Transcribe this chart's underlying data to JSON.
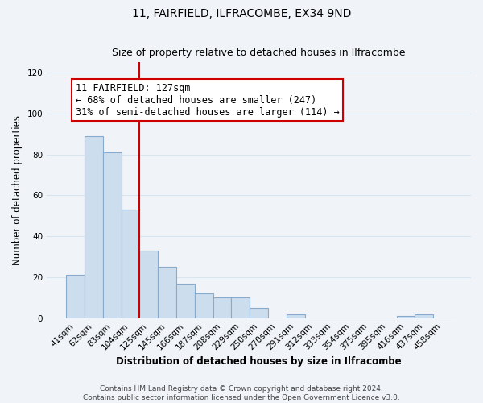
{
  "title": "11, FAIRFIELD, ILFRACOMBE, EX34 9ND",
  "subtitle": "Size of property relative to detached houses in Ilfracombe",
  "xlabel": "Distribution of detached houses by size in Ilfracombe",
  "ylabel": "Number of detached properties",
  "footer_line1": "Contains HM Land Registry data © Crown copyright and database right 2024.",
  "footer_line2": "Contains public sector information licensed under the Open Government Licence v3.0.",
  "bin_labels": [
    "41sqm",
    "62sqm",
    "83sqm",
    "104sqm",
    "125sqm",
    "145sqm",
    "166sqm",
    "187sqm",
    "208sqm",
    "229sqm",
    "250sqm",
    "270sqm",
    "291sqm",
    "312sqm",
    "333sqm",
    "354sqm",
    "375sqm",
    "395sqm",
    "416sqm",
    "437sqm",
    "458sqm"
  ],
  "bar_heights": [
    21,
    89,
    81,
    53,
    33,
    25,
    17,
    12,
    10,
    10,
    5,
    0,
    2,
    0,
    0,
    0,
    0,
    0,
    1,
    2,
    0
  ],
  "bar_color": "#ccdded",
  "bar_edge_color": "#88aacc",
  "vline_color": "#cc0000",
  "vline_x": 4.0,
  "annotation_text": "11 FAIRFIELD: 127sqm\n← 68% of detached houses are smaller (247)\n31% of semi-detached houses are larger (114) →",
  "annotation_box_edgecolor": "#cc0000",
  "ylim": [
    0,
    125
  ],
  "yticks": [
    0,
    20,
    40,
    60,
    80,
    100,
    120
  ],
  "grid_color": "#d8e4f0",
  "background_color": "#f0f4f8",
  "title_fontsize": 10,
  "subtitle_fontsize": 9,
  "axis_fontsize": 8.5,
  "tick_fontsize": 7.5,
  "annot_fontsize": 8.5,
  "footer_fontsize": 6.5
}
